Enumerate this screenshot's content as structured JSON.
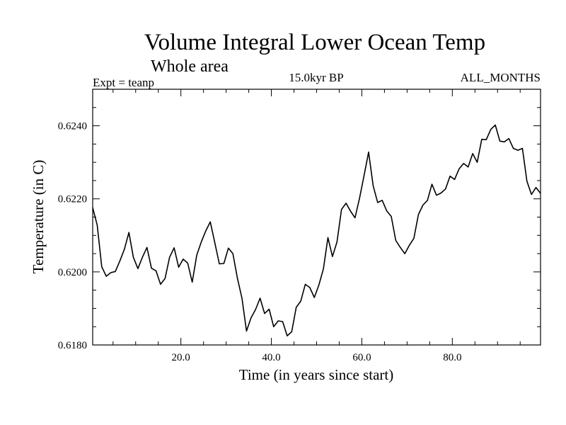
{
  "chart_data": {
    "type": "line",
    "title": "Volume Integral Lower Ocean Temp",
    "subtitle": "Whole area",
    "header_left": "Expt = teanp",
    "header_center": "15.0kyr BP",
    "header_right": "ALL_MONTHS",
    "xlabel": "Time (in years since start)",
    "ylabel": "Temperature (in C)",
    "xlim": [
      0.5,
      99.5
    ],
    "ylim": [
      0.618,
      0.625
    ],
    "x_ticks": [
      20,
      40,
      60,
      80
    ],
    "x_tick_labels": [
      "20.0",
      "40.0",
      "60.0",
      "80.0"
    ],
    "x_minor_step": 5,
    "y_ticks": [
      0.618,
      0.62,
      0.622,
      0.624
    ],
    "y_tick_labels": [
      "0.6180",
      "0.6200",
      "0.6220",
      "0.6240"
    ],
    "y_minor_step": 0.0005,
    "grid": false,
    "series": [
      {
        "name": "teanp",
        "color": "#000000",
        "x": [
          0.5,
          1.5,
          2.5,
          3.5,
          4.5,
          5.5,
          6.5,
          7.5,
          8.5,
          9.5,
          10.5,
          11.5,
          12.5,
          13.5,
          14.5,
          15.5,
          16.5,
          17.5,
          18.5,
          19.5,
          20.5,
          21.5,
          22.5,
          23.5,
          24.5,
          25.5,
          26.5,
          27.5,
          28.5,
          29.5,
          30.5,
          31.5,
          32.5,
          33.5,
          34.5,
          35.5,
          36.5,
          37.5,
          38.5,
          39.5,
          40.5,
          41.5,
          42.5,
          43.5,
          44.5,
          45.5,
          46.5,
          47.5,
          48.5,
          49.5,
          50.5,
          51.5,
          52.5,
          53.5,
          54.5,
          55.5,
          56.5,
          57.5,
          58.5,
          59.5,
          60.5,
          61.5,
          62.5,
          63.5,
          64.5,
          65.5,
          66.5,
          67.5,
          68.5,
          69.5,
          70.5,
          71.5,
          72.5,
          73.5,
          74.5,
          75.5,
          76.5,
          77.5,
          78.5,
          79.5,
          80.5,
          81.5,
          82.5,
          83.5,
          84.5,
          85.5,
          86.5,
          87.5,
          88.5,
          89.5,
          90.5,
          91.5,
          92.5,
          93.5,
          94.5,
          95.5,
          96.5,
          97.5,
          98.5,
          99.5
        ],
        "values": [
          0.62176,
          0.62128,
          0.62014,
          0.61988,
          0.61998,
          0.62001,
          0.6203,
          0.62062,
          0.62108,
          0.6204,
          0.62009,
          0.6204,
          0.62067,
          0.6201,
          0.62003,
          0.61966,
          0.61982,
          0.6204,
          0.62066,
          0.62013,
          0.62035,
          0.62024,
          0.61972,
          0.62046,
          0.62082,
          0.62112,
          0.62137,
          0.6208,
          0.62022,
          0.62023,
          0.62065,
          0.6205,
          0.61982,
          0.61928,
          0.61838,
          0.61874,
          0.61897,
          0.61928,
          0.61886,
          0.61898,
          0.6185,
          0.61866,
          0.61864,
          0.61825,
          0.61836,
          0.61903,
          0.6192,
          0.61966,
          0.61957,
          0.6193,
          0.61964,
          0.62008,
          0.62094,
          0.62042,
          0.62082,
          0.62171,
          0.62188,
          0.62166,
          0.62148,
          0.62202,
          0.62264,
          0.62328,
          0.62236,
          0.6219,
          0.62196,
          0.62167,
          0.62152,
          0.62086,
          0.62067,
          0.6205,
          0.62073,
          0.62092,
          0.62157,
          0.62183,
          0.62196,
          0.6224,
          0.6221,
          0.62216,
          0.62227,
          0.62262,
          0.62253,
          0.62282,
          0.62297,
          0.62287,
          0.62324,
          0.623,
          0.62363,
          0.62362,
          0.6239,
          0.62402,
          0.62358,
          0.62356,
          0.62365,
          0.62338,
          0.62333,
          0.62338,
          0.62248,
          0.62212,
          0.62231,
          0.62215
        ]
      }
    ]
  }
}
